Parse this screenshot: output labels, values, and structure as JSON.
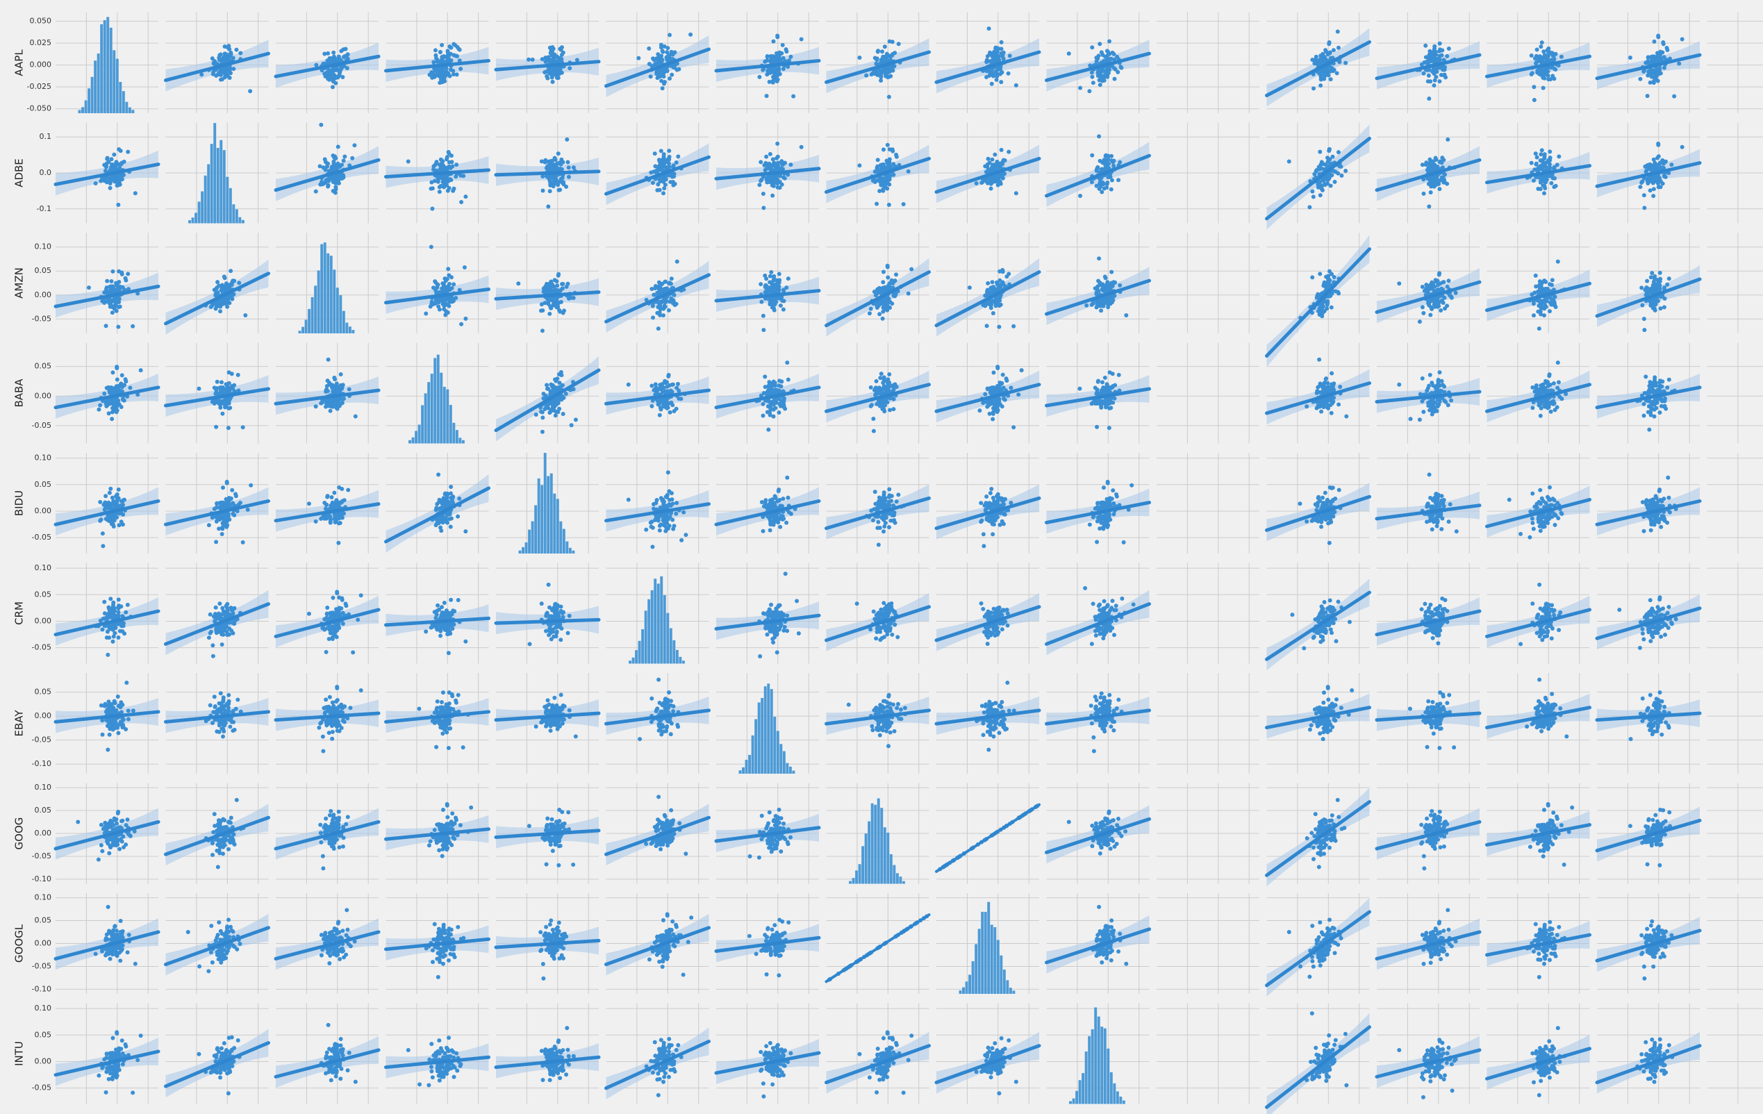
{
  "chart_data": {
    "type": "scatter",
    "subtype": "pairplot-regression",
    "title": "",
    "variables": [
      "AAPL",
      "ADBE",
      "AMZN",
      "BABA",
      "BIDU",
      "CRM",
      "EBAY",
      "GOOG",
      "GOOGL",
      "INTU",
      "",
      "",
      "",
      "",
      "",
      ""
    ],
    "row_labels": [
      "AAPL",
      "ADBE",
      "AMZN",
      "BABA",
      "BIDU",
      "CRM",
      "EBAY",
      "GOOG",
      "GOOGL",
      "INTU"
    ],
    "n_columns": 16,
    "empty_columns": [
      10,
      15
    ],
    "diagonal": "histogram",
    "off_diagonal": "scatter with regression line and confidence band",
    "grid": true,
    "y_ticks": [
      [
        "0.050",
        "0.025",
        "0.000",
        "-0.025",
        "-0.050"
      ],
      [
        "0.1",
        "0.0",
        "-0.1"
      ],
      [
        "0.10",
        "0.05",
        "0.00",
        "-0.05"
      ],
      [
        "0.05",
        "0.00",
        "-0.05"
      ],
      [
        "0.10",
        "0.05",
        "0.00",
        "-0.05"
      ],
      [
        "0.10",
        "0.05",
        "0.00",
        "-0.05"
      ],
      [
        "0.05",
        "0.00",
        "-0.05",
        "-0.10"
      ],
      [
        "0.10",
        "0.05",
        "0.00",
        "-0.05",
        "-0.10"
      ],
      [
        "0.10",
        "0.05",
        "0.00",
        "-0.05",
        "-0.10"
      ],
      [
        "0.10",
        "0.05",
        "0.00",
        "-0.05"
      ]
    ],
    "y_ranges": [
      [
        -0.055,
        0.06
      ],
      [
        -0.14,
        0.14
      ],
      [
        -0.08,
        0.13
      ],
      [
        -0.08,
        0.09
      ],
      [
        -0.08,
        0.11
      ],
      [
        -0.08,
        0.11
      ],
      [
        -0.12,
        0.09
      ],
      [
        -0.11,
        0.11
      ],
      [
        -0.11,
        0.11
      ],
      [
        -0.08,
        0.11
      ]
    ],
    "slopes": [
      [
        0,
        0.4,
        0.3,
        0.15,
        0.12,
        0.55,
        0.15,
        0.45,
        0.45,
        0.4,
        0,
        0.8,
        0.35,
        0.3,
        0.35,
        0
      ],
      [
        0.3,
        0,
        0.45,
        0.1,
        0.05,
        0.55,
        0.15,
        0.5,
        0.5,
        0.6,
        0,
        1.2,
        0.45,
        0.25,
        0.35,
        0
      ],
      [
        0.3,
        0.75,
        0,
        0.2,
        0.1,
        0.7,
        0.15,
        0.8,
        0.8,
        0.5,
        0,
        1.6,
        0.45,
        0.4,
        0.55,
        0
      ],
      [
        0.3,
        0.25,
        0.2,
        0,
        0.9,
        0.2,
        0.3,
        0.4,
        0.4,
        0.25,
        0,
        0.45,
        0.15,
        0.4,
        0.3,
        0
      ],
      [
        0.35,
        0.35,
        0.25,
        0.8,
        0,
        0.25,
        0.35,
        0.45,
        0.45,
        0.3,
        0,
        0.5,
        0.2,
        0.4,
        0.35,
        0
      ],
      [
        0.35,
        0.6,
        0.4,
        0.1,
        0.05,
        0,
        0.2,
        0.5,
        0.5,
        0.6,
        0,
        1.0,
        0.35,
        0.4,
        0.45,
        0
      ],
      [
        0.15,
        0.15,
        0.1,
        0.15,
        0.1,
        0.2,
        0,
        0.2,
        0.2,
        0.2,
        0,
        0.3,
        0.1,
        0.3,
        0.1,
        0
      ],
      [
        0.4,
        0.55,
        0.4,
        0.15,
        0.1,
        0.55,
        0.2,
        0,
        1.0,
        0.5,
        0,
        1.1,
        0.4,
        0.3,
        0.45,
        0
      ],
      [
        0.4,
        0.55,
        0.4,
        0.15,
        0.1,
        0.55,
        0.2,
        1.0,
        0,
        0.5,
        0,
        1.1,
        0.4,
        0.3,
        0.45,
        0
      ],
      [
        0.35,
        0.65,
        0.4,
        0.15,
        0.15,
        0.7,
        0.3,
        0.55,
        0.55,
        0,
        0,
        1.2,
        0.4,
        0.45,
        0.55,
        0
      ]
    ],
    "colors": {
      "background": "#f0f0f0",
      "grid": "#cbcbcb",
      "marker": "#3a8fd4",
      "line": "#2f86cf",
      "band": "#a9c9ea",
      "hist": "#4d9ad6"
    }
  }
}
